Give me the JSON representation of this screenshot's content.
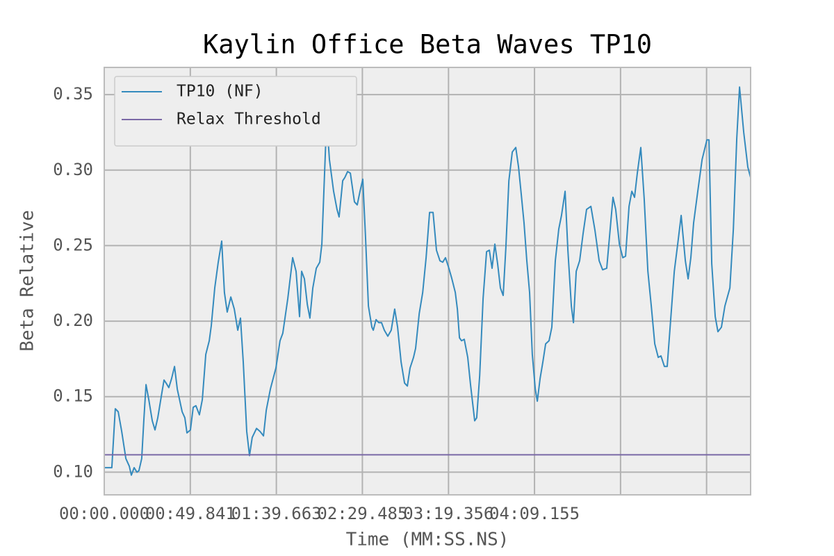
{
  "chart_data": {
    "type": "line",
    "title": "Kaylin Office Beta Waves TP10",
    "x_label": "Time (MM:SS.NS)",
    "y_label": "Beta Relative",
    "x": [
      0,
      4.4,
      6.4,
      8.1,
      10.1,
      12.5,
      14.5,
      15.7,
      17.3,
      18.9,
      20.1,
      21.7,
      22.9,
      24.2,
      25.8,
      27.8,
      29.4,
      31.0,
      33.0,
      34.6,
      35.8,
      37.4,
      39.0,
      40.7,
      42.3,
      45.1,
      46.7,
      47.9,
      49.9,
      51.5,
      53.1,
      55.1,
      56.8,
      58.8,
      60.8,
      62.0,
      64.0,
      66.0,
      68.0,
      69.6,
      71.2,
      73.3,
      75.3,
      77.3,
      78.9,
      80.5,
      82.5,
      84.1,
      85.7,
      88.2,
      90.2,
      92.2,
      93.8,
      96.2,
      99.4,
      101.8,
      103.4,
      106.3,
      109.1,
      111.1,
      113.1,
      114.3,
      115.9,
      117.6,
      119.1,
      120.8,
      122.8,
      124.8,
      126.0,
      127.6,
      128.8,
      130.4,
      132.8,
      134.8,
      136.0,
      138.1,
      139.3,
      140.9,
      142.5,
      144.9,
      146.5,
      148.1,
      149.7,
      151.3,
      153.0,
      155.0,
      155.8,
      157.4,
      159.0,
      160.6,
      162.2,
      164.2,
      166.2,
      168.2,
      169.9,
      171.9,
      173.9,
      175.5,
      177.1,
      179.1,
      180.3,
      182.4,
      184.4,
      186.4,
      188.4,
      190.4,
      192.4,
      194.4,
      196.0,
      197.6,
      199.6,
      201.3,
      203.3,
      204.5,
      205.7,
      206.9,
      208.5,
      210.5,
      212.1,
      214.5,
      215.7,
      217.4,
      219.4,
      221.4,
      223.0,
      224.6,
      226.2,
      227.8,
      229.4,
      231.0,
      232.6,
      234.3,
      236.3,
      238.3,
      239.9,
      241.5,
      243.1,
      244.7,
      246.3,
      247.9,
      249.6,
      250.8,
      252.4,
      254.0,
      255.6,
      257.6,
      259.2,
      261.2,
      263.2,
      264.8,
      266.9,
      268.5,
      270.5,
      271.7,
      273.3,
      275.3,
      277.3,
      279.3,
      281.8,
      284.2,
      286.6,
      288.6,
      291.0,
      292.6,
      294.6,
      296.2,
      298.3,
      300.3,
      301.9,
      303.9,
      305.5,
      307.1,
      308.7,
      310.7,
      312.7,
      314.8,
      316.8,
      318.8,
      320.8,
      322.4,
      324.4,
      326.0,
      328.0,
      330.1,
      332.1,
      334.1,
      336.5,
      338.1,
      339.7,
      341.3,
      343.7,
      346.2,
      349.0,
      350.2,
      351.8,
      353.8,
      355.4,
      357.4,
      359.4,
      362.3,
      364.3,
      366.3,
      367.9,
      370.3,
      372.7,
      374.3
    ],
    "series": [
      {
        "name": "TP10 (NF)",
        "color": "#348abd",
        "values": [
          0.103,
          0.103,
          0.142,
          0.14,
          0.127,
          0.109,
          0.104,
          0.098,
          0.103,
          0.1,
          0.101,
          0.109,
          0.134,
          0.158,
          0.148,
          0.134,
          0.128,
          0.136,
          0.15,
          0.161,
          0.159,
          0.156,
          0.162,
          0.17,
          0.155,
          0.14,
          0.136,
          0.126,
          0.128,
          0.143,
          0.144,
          0.138,
          0.148,
          0.178,
          0.187,
          0.197,
          0.222,
          0.239,
          0.253,
          0.219,
          0.206,
          0.216,
          0.208,
          0.194,
          0.202,
          0.173,
          0.127,
          0.111,
          0.123,
          0.129,
          0.127,
          0.124,
          0.141,
          0.155,
          0.169,
          0.187,
          0.192,
          0.215,
          0.242,
          0.233,
          0.203,
          0.233,
          0.228,
          0.211,
          0.202,
          0.222,
          0.235,
          0.239,
          0.251,
          0.298,
          0.334,
          0.307,
          0.286,
          0.274,
          0.269,
          0.293,
          0.295,
          0.299,
          0.298,
          0.279,
          0.277,
          0.286,
          0.294,
          0.256,
          0.21,
          0.196,
          0.194,
          0.201,
          0.199,
          0.199,
          0.194,
          0.19,
          0.194,
          0.208,
          0.196,
          0.173,
          0.159,
          0.157,
          0.169,
          0.176,
          0.182,
          0.205,
          0.219,
          0.242,
          0.272,
          0.272,
          0.247,
          0.24,
          0.239,
          0.242,
          0.235,
          0.228,
          0.219,
          0.208,
          0.189,
          0.187,
          0.188,
          0.176,
          0.158,
          0.134,
          0.136,
          0.164,
          0.215,
          0.246,
          0.247,
          0.235,
          0.251,
          0.238,
          0.222,
          0.217,
          0.249,
          0.293,
          0.312,
          0.315,
          0.302,
          0.284,
          0.265,
          0.24,
          0.219,
          0.178,
          0.155,
          0.147,
          0.162,
          0.173,
          0.185,
          0.187,
          0.196,
          0.24,
          0.261,
          0.27,
          0.286,
          0.247,
          0.21,
          0.199,
          0.233,
          0.24,
          0.258,
          0.274,
          0.276,
          0.26,
          0.24,
          0.234,
          0.235,
          0.256,
          0.282,
          0.274,
          0.251,
          0.242,
          0.243,
          0.276,
          0.286,
          0.282,
          0.298,
          0.315,
          0.281,
          0.233,
          0.21,
          0.185,
          0.176,
          0.177,
          0.17,
          0.17,
          0.201,
          0.233,
          0.251,
          0.27,
          0.24,
          0.228,
          0.242,
          0.265,
          0.286,
          0.307,
          0.32,
          0.32,
          0.238,
          0.203,
          0.193,
          0.196,
          0.21,
          0.222,
          0.261,
          0.321,
          0.355,
          0.325,
          0.302,
          0.295
        ]
      }
    ],
    "hlines": [
      {
        "name": "Relax Threshold",
        "color": "#7a68a6",
        "value": 0.1115
      }
    ],
    "xlim": [
      0,
      374.3
    ],
    "ylim": [
      0.085,
      0.368
    ],
    "xticks": [
      {
        "value": 0,
        "label": "00:00.000"
      },
      {
        "value": 49.841,
        "label": "00:49.841"
      },
      {
        "value": 99.663,
        "label": "01:39.663"
      },
      {
        "value": 149.485,
        "label": "02:29.485"
      },
      {
        "value": 199.356,
        "label": "03:19.356"
      },
      {
        "value": 249.155,
        "label": "04:09.155"
      },
      {
        "value": 298.98
      },
      {
        "value": 348.81
      }
    ],
    "yticks": [
      {
        "value": 0.1,
        "label": "0.10"
      },
      {
        "value": 0.15,
        "label": "0.15"
      },
      {
        "value": 0.2,
        "label": "0.20"
      },
      {
        "value": 0.25,
        "label": "0.25"
      },
      {
        "value": 0.3,
        "label": "0.30"
      },
      {
        "value": 0.35,
        "label": "0.35"
      }
    ],
    "grid": true,
    "legend": "upper left"
  }
}
